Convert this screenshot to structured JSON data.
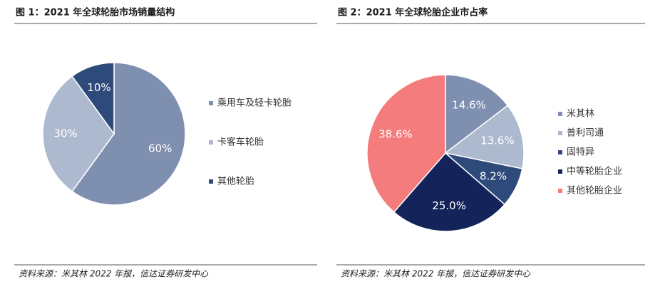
{
  "chart_data": [
    {
      "type": "pie",
      "title": "图 1：2021 年全球轮胎市场销量结构",
      "categories": [
        "乘用车及轻卡轮胎",
        "卡客车轮胎",
        "其他轮胎"
      ],
      "values": [
        60,
        30,
        10
      ],
      "value_labels": [
        "60%",
        "30%",
        "10%"
      ],
      "colors": [
        "#7f8fb0",
        "#adb9cf",
        "#2e4a7a"
      ],
      "source": "资料来源：米其林 2022 年报，信达证券研发中心"
    },
    {
      "type": "pie",
      "title": "图 2：2021 年全球轮胎企业市占率",
      "categories": [
        "米其林",
        "普利司通",
        "固特异",
        "中等轮胎企业",
        "其他轮胎企业"
      ],
      "values": [
        14.6,
        13.6,
        8.2,
        25.0,
        38.6
      ],
      "value_labels": [
        "14.6%",
        "13.6%",
        "8.2%",
        "25.0%",
        "38.6%"
      ],
      "colors": [
        "#7f8fb0",
        "#adb9cf",
        "#2e4a7a",
        "#14245a",
        "#f47c7c"
      ],
      "source": "资料来源：米其林 2022 年报，信达证券研发中心"
    }
  ]
}
